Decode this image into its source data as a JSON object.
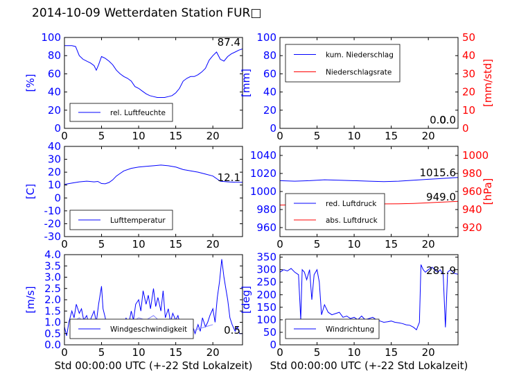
{
  "figure": {
    "title": "2014-10-09 Wetterdaten Station FUR",
    "title_suffix": "□"
  },
  "colors": {
    "blue": "#0000ff",
    "red": "#ff0000",
    "light_blue": "#8080ff",
    "frame": "#000000"
  },
  "chart_data": [
    {
      "type": "line",
      "panel": "top-left",
      "xlabel": "",
      "ylabel": "[%]",
      "xlim": [
        0,
        24
      ],
      "ylim": [
        0,
        100
      ],
      "xticks": [
        0,
        5,
        10,
        15,
        20
      ],
      "yticks": [
        0,
        20,
        40,
        60,
        80,
        100
      ],
      "ytick_color": "blue",
      "legend": {
        "placement": "lower-left",
        "entries": [
          {
            "label": "rel. Luftfeuchte",
            "color": "blue"
          }
        ]
      },
      "last_value_label": "87.4",
      "series": [
        {
          "name": "rel. Luftfeuchte",
          "color": "blue",
          "axis": "left",
          "x": [
            0,
            1,
            1.5,
            2,
            2.5,
            3,
            3.5,
            4,
            4.3,
            4.6,
            5,
            5.5,
            6,
            6.5,
            7,
            7.5,
            8,
            8.5,
            9,
            9.5,
            10,
            10.5,
            11,
            11.5,
            12,
            12.5,
            13,
            13.5,
            14,
            14.5,
            15,
            15.5,
            16,
            16.5,
            17,
            17.5,
            18,
            18.5,
            19,
            19.5,
            20,
            20.5,
            21,
            21.5,
            22,
            22.5,
            23,
            23.5,
            24
          ],
          "y": [
            91,
            91,
            90,
            80,
            76,
            74,
            72,
            69,
            64,
            70,
            79,
            77,
            74,
            70,
            64,
            60,
            57,
            55,
            52,
            46,
            44,
            41,
            38,
            36,
            35,
            34,
            34,
            34,
            35,
            36,
            39,
            44,
            52,
            55,
            57,
            57,
            59,
            62,
            66,
            75,
            80,
            84,
            76,
            74,
            79,
            82,
            84,
            86,
            87.4
          ]
        }
      ]
    },
    {
      "type": "line",
      "panel": "top-right",
      "xlabel": "",
      "ylabel": "[mm]",
      "ylabel_right": "[mm/std]",
      "xlim": [
        0,
        24
      ],
      "ylim": [
        0,
        100
      ],
      "ylim_right": [
        0,
        50
      ],
      "xticks": [
        0,
        5,
        10,
        15,
        20
      ],
      "yticks": [
        0,
        20,
        40,
        60,
        80,
        100
      ],
      "yticks_right": [
        0,
        10,
        20,
        30,
        40,
        50
      ],
      "legend": {
        "placement": "upper-left",
        "entries": [
          {
            "label": "kum. Niederschlag",
            "color": "blue"
          },
          {
            "label": "Niederschlagsrate",
            "color": "red"
          }
        ]
      },
      "last_value_label": "0.0",
      "last_value_label_2": "0.0",
      "series": [
        {
          "name": "kum. Niederschlag",
          "color": "blue",
          "axis": "left",
          "x": [
            0,
            24
          ],
          "y": [
            0,
            0
          ]
        },
        {
          "name": "Niederschlagsrate",
          "color": "red",
          "axis": "right",
          "x": [
            0,
            24
          ],
          "y": [
            0,
            0
          ]
        }
      ]
    },
    {
      "type": "line",
      "panel": "middle-left",
      "xlabel": "",
      "ylabel": "[C]",
      "xlim": [
        0,
        24
      ],
      "ylim": [
        -30,
        40
      ],
      "xticks": [
        0,
        5,
        10,
        15,
        20
      ],
      "yticks": [
        -30,
        -20,
        -10,
        0,
        10,
        20,
        30,
        40
      ],
      "legend": {
        "placement": "lower-left",
        "entries": [
          {
            "label": "Lufttemperatur",
            "color": "blue"
          }
        ]
      },
      "last_value_label": "12.1",
      "series": [
        {
          "name": "Lufttemperatur",
          "color": "blue",
          "axis": "left",
          "x": [
            0,
            1,
            2,
            3,
            4,
            4.5,
            5,
            5.5,
            6,
            6.5,
            7,
            7.5,
            8,
            9,
            10,
            11,
            12,
            13,
            14,
            15,
            16,
            17,
            18,
            19,
            20,
            20.5,
            21,
            22,
            23,
            24
          ],
          "y": [
            10.5,
            11.5,
            12.5,
            13,
            12.5,
            12.8,
            11.2,
            11,
            12,
            14,
            17,
            19,
            21,
            23,
            24,
            24.5,
            25,
            25.5,
            25,
            24,
            22,
            21,
            20,
            18.5,
            17,
            15,
            13,
            12.5,
            12.2,
            12.1
          ]
        }
      ]
    },
    {
      "type": "line",
      "panel": "middle-right",
      "xlabel": "",
      "ylabel": "",
      "ylabel_right": "[hPa]",
      "xlim": [
        0,
        24
      ],
      "ylim": [
        950,
        1050
      ],
      "ylim_right": [
        910,
        1010
      ],
      "xticks": [
        0,
        5,
        10,
        15,
        20
      ],
      "yticks": [
        960,
        980,
        1000,
        1020,
        1040
      ],
      "yticks_right": [
        920,
        940,
        960,
        980,
        1000
      ],
      "legend": {
        "placement": "lower-left",
        "entries": [
          {
            "label": "red. Luftdruck",
            "color": "blue"
          },
          {
            "label": "abs. Luftdruck",
            "color": "red"
          }
        ]
      },
      "last_value_label": "1015.6",
      "last_value_label_2": "949.0",
      "series": [
        {
          "name": "red. Luftdruck",
          "color": "blue",
          "axis": "left",
          "x": [
            0,
            2,
            4,
            6,
            8,
            10,
            12,
            14,
            16,
            18,
            20,
            22,
            24
          ],
          "y": [
            1012,
            1011.5,
            1012,
            1013,
            1012.5,
            1012,
            1011.5,
            1011,
            1011.5,
            1012.5,
            1013.5,
            1014.5,
            1015.6
          ]
        },
        {
          "name": "abs. Luftdruck",
          "color": "red",
          "axis": "right",
          "x": [
            0,
            2,
            4,
            6,
            8,
            10,
            12,
            14,
            16,
            18,
            20,
            22,
            24
          ],
          "y": [
            945,
            945.2,
            945.6,
            946,
            946.2,
            946.3,
            946.3,
            946.2,
            946.4,
            946.8,
            947.5,
            948.3,
            949.0
          ]
        }
      ]
    },
    {
      "type": "line",
      "panel": "bottom-left",
      "xlabel": "Std 00:00:00 UTC (+-22 Std Lokalzeit)",
      "ylabel": "[m/s]",
      "xlim": [
        0,
        24
      ],
      "ylim": [
        0,
        4
      ],
      "xticks": [
        0,
        5,
        10,
        15,
        20
      ],
      "yticks": [
        0.0,
        0.5,
        1.0,
        1.5,
        2.0,
        2.5,
        3.0,
        3.5,
        4.0
      ],
      "legend": {
        "placement": "lower-left",
        "entries": [
          {
            "label": "Windgeschwindigkeit",
            "color": "blue"
          }
        ]
      },
      "last_value_label": "0.5",
      "series": [
        {
          "name": "Windgeschwindigkeit",
          "color": "blue",
          "axis": "left",
          "x": [
            0,
            0.3,
            0.6,
            1,
            1.3,
            1.6,
            2,
            2.3,
            2.6,
            3,
            3.3,
            3.6,
            4,
            4.3,
            4.6,
            5,
            5.2,
            5.5,
            5.8,
            6,
            6.3,
            6.6,
            7,
            7.3,
            7.6,
            8,
            8.3,
            8.6,
            9,
            9.3,
            9.6,
            10,
            10.3,
            10.6,
            11,
            11.3,
            11.6,
            12,
            12.3,
            12.6,
            13,
            13.3,
            13.6,
            14,
            14.3,
            14.6,
            15,
            15.3,
            15.6,
            16,
            16.3,
            16.6,
            17,
            17.3,
            17.6,
            18,
            18.3,
            18.6,
            19,
            19.3,
            19.6,
            20,
            20.3,
            20.6,
            20.9,
            21.2,
            21.5,
            21.8,
            22,
            22.3,
            22.6,
            23,
            23.3,
            23.6,
            24
          ],
          "y": [
            0.8,
            0.4,
            1.0,
            1.5,
            1.2,
            1.8,
            1.4,
            1.6,
            1.1,
            1.3,
            0.9,
            1.2,
            1.5,
            1.0,
            1.8,
            2.6,
            1.6,
            1.2,
            0.6,
            0.4,
            0.7,
            0.5,
            0.8,
            0.5,
            1.0,
            0.6,
            1.2,
            0.8,
            1.5,
            1.1,
            1.8,
            2.0,
            1.5,
            2.4,
            1.8,
            2.2,
            1.6,
            2.5,
            1.7,
            2.1,
            1.5,
            2.4,
            1.2,
            1.6,
            1.0,
            1.4,
            1.1,
            1.3,
            0.9,
            1.0,
            0.5,
            0.9,
            0.4,
            0.8,
            0.5,
            0.9,
            0.6,
            1.2,
            0.8,
            1.0,
            1.3,
            1.6,
            1.0,
            2.1,
            2.8,
            3.8,
            3.0,
            2.4,
            2.0,
            1.2,
            0.9,
            0.6,
            0.8,
            0.5,
            0.5
          ]
        },
        {
          "name": "",
          "color": "light_blue",
          "axis": "left",
          "x": [
            1,
            2,
            3,
            4,
            5,
            6,
            7,
            8,
            9,
            10,
            11,
            12,
            13,
            14,
            15,
            16,
            17,
            18,
            19,
            20
          ],
          "y": [
            1.0,
            1.2,
            0.9,
            1.1,
            0.8,
            0.6,
            0.7,
            0.8,
            1.0,
            1.2,
            1.1,
            1.3,
            1.0,
            0.9,
            0.8,
            0.7,
            0.6,
            0.7,
            0.8,
            0.9
          ]
        }
      ]
    },
    {
      "type": "line",
      "panel": "bottom-right",
      "xlabel": "Std 00:00:00 UTC (+-22 Std Lokalzeit)",
      "ylabel": "[deg]",
      "xlim": [
        0,
        24
      ],
      "ylim": [
        0,
        360
      ],
      "xticks": [
        0,
        5,
        10,
        15,
        20
      ],
      "yticks": [
        0,
        50,
        100,
        150,
        200,
        250,
        300,
        350
      ],
      "legend": {
        "placement": "lower-left",
        "entries": [
          {
            "label": "Windrichtung",
            "color": "blue"
          }
        ]
      },
      "last_value_label": "281.9",
      "series": [
        {
          "name": "Windrichtung",
          "color": "blue",
          "axis": "left",
          "x": [
            0,
            0.5,
            1,
            1.5,
            2,
            2.5,
            2.8,
            3,
            3.3,
            3.6,
            4,
            4.3,
            4.6,
            5,
            5.3,
            5.6,
            6,
            6.5,
            7,
            7.5,
            8,
            8.5,
            9,
            9.5,
            10,
            10.5,
            11,
            11.5,
            12,
            12.5,
            13,
            13.5,
            14,
            14.5,
            15,
            15.5,
            16,
            16.5,
            17,
            17.5,
            18,
            18.4,
            18.8,
            19,
            19.3,
            19.6,
            20,
            20.5,
            21,
            21.3,
            21.6,
            22,
            22.3,
            22.6,
            23,
            23.5,
            24
          ],
          "y": [
            290,
            300,
            295,
            305,
            290,
            280,
            100,
            300,
            290,
            260,
            300,
            180,
            280,
            300,
            250,
            120,
            160,
            130,
            120,
            125,
            130,
            110,
            115,
            105,
            110,
            100,
            115,
            100,
            105,
            110,
            100,
            95,
            90,
            92,
            95,
            90,
            88,
            85,
            80,
            78,
            70,
            60,
            90,
            320,
            300,
            290,
            300,
            310,
            295,
            290,
            300,
            280,
            70,
            290,
            300,
            285,
            281.9
          ]
        }
      ]
    }
  ]
}
